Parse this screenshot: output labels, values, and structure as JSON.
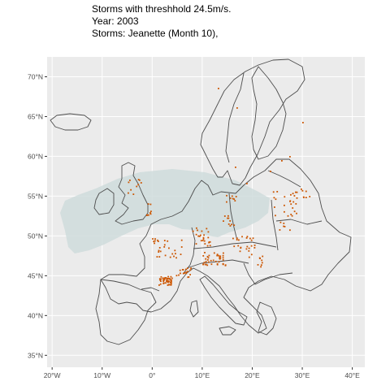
{
  "title": {
    "line1": "Storms with threshhold 24.5m/s.",
    "line2": "Year: 2003",
    "line3": "Storms: Jeanette (Month 10),"
  },
  "map": {
    "x_ticks": [
      {
        "lon": -20,
        "label": "20°W"
      },
      {
        "lon": -10,
        "label": "10°W"
      },
      {
        "lon": 0,
        "label": "0°"
      },
      {
        "lon": 10,
        "label": "10°E"
      },
      {
        "lon": 20,
        "label": "20°E"
      },
      {
        "lon": 30,
        "label": "30°E"
      },
      {
        "lon": 40,
        "label": "40°E"
      }
    ],
    "y_ticks": [
      {
        "lat": 35,
        "label": "35°N"
      },
      {
        "lat": 40,
        "label": "40°N"
      },
      {
        "lat": 45,
        "label": "45°N"
      },
      {
        "lat": 50,
        "label": "50°N"
      },
      {
        "lat": 55,
        "label": "55°N"
      },
      {
        "lat": 60,
        "label": "60°N"
      },
      {
        "lat": 65,
        "label": "65°N"
      },
      {
        "lat": 70,
        "label": "70°N"
      }
    ],
    "lon_range": [
      -21,
      42.5
    ],
    "lat_range": [
      33.5,
      72.5
    ],
    "colors": {
      "panel_background": "#ebebeb",
      "grid": "#ffffff",
      "land_border": "#4d4d4d",
      "storm_footprint": "#cfdcdc",
      "damage_points": "#cc5500"
    }
  }
}
